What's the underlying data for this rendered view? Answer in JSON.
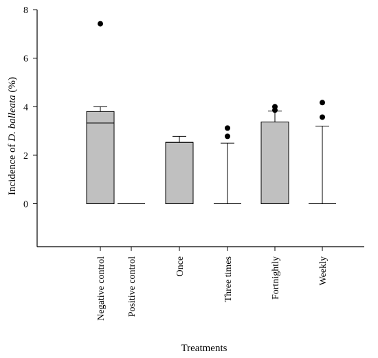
{
  "chart_data": {
    "type": "box",
    "xlabel": "Treatments",
    "ylabel": {
      "before": "Incidence of ",
      "italic": "D. balleata",
      "after": " (%)"
    },
    "ylim": [
      -2,
      8
    ],
    "yticks": [
      0,
      2,
      4,
      6,
      8
    ],
    "categories": [
      "Negative control",
      "Positive control",
      "Once",
      "Three times",
      "Fortnightly",
      "Weekly"
    ],
    "boxes": [
      {
        "category": "Negative control",
        "q1": 0,
        "median": 3.33,
        "q3": 3.8,
        "whisker_low": 0,
        "whisker_high": 4.0,
        "outliers": [
          7.42
        ]
      },
      {
        "category": "Positive control",
        "q1": 0,
        "median": 0,
        "q3": 0,
        "whisker_low": 0,
        "whisker_high": 0,
        "outliers": []
      },
      {
        "category": "Once",
        "q1": 0,
        "median": 2.53,
        "q3": 2.53,
        "whisker_low": 0,
        "whisker_high": 2.78,
        "outliers": []
      },
      {
        "category": "Three times",
        "q1": 0,
        "median": 0,
        "q3": 0,
        "whisker_low": 0,
        "whisker_high": 2.5,
        "outliers": [
          2.78,
          3.12
        ]
      },
      {
        "category": "Fortnightly",
        "q1": 0,
        "median": 3.37,
        "q3": 3.37,
        "whisker_low": 0,
        "whisker_high": 3.82,
        "outliers": [
          3.86,
          4.0
        ]
      },
      {
        "category": "Weekly",
        "q1": 0,
        "median": 0,
        "q3": 0,
        "whisker_low": 0,
        "whisker_high": 3.2,
        "outliers": [
          3.57,
          4.17
        ]
      }
    ],
    "box_color": "#c0c0c0",
    "line_color": "#000000",
    "grid": false,
    "legend": "none"
  }
}
